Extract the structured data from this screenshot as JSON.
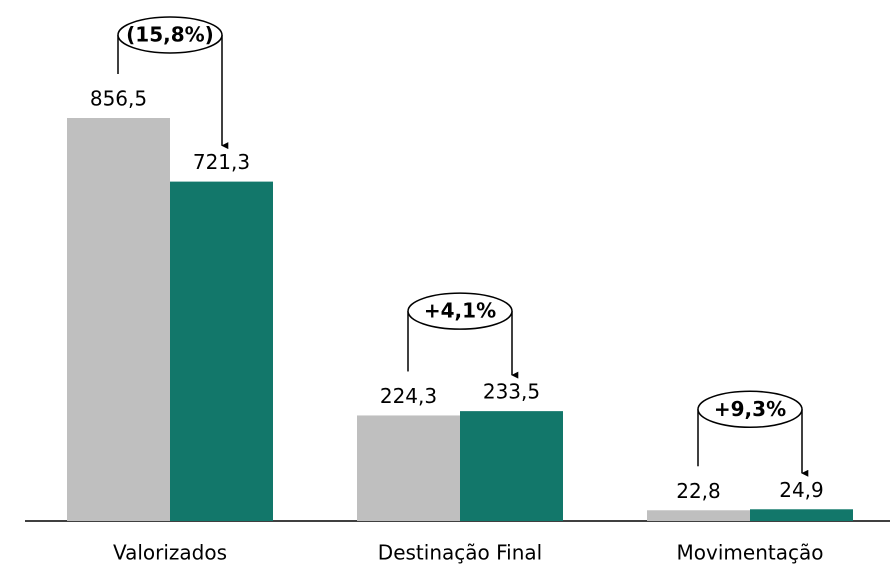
{
  "chart_data": {
    "type": "bar",
    "categories": [
      "Valorizados",
      "Destinação Final",
      "Movimentação"
    ],
    "series": [
      {
        "color": "#bfbfbf",
        "values": [
          856.5,
          224.3,
          22.8
        ],
        "value_labels": [
          "856,5",
          "224,3",
          "22,8"
        ]
      },
      {
        "color": "#12776a",
        "values": [
          721.3,
          233.5,
          24.9
        ],
        "value_labels": [
          "721,3",
          "233,5",
          "24,9"
        ]
      }
    ],
    "annotations": [
      "(15,8%)",
      "+4,1%",
      "+9,3%"
    ]
  }
}
